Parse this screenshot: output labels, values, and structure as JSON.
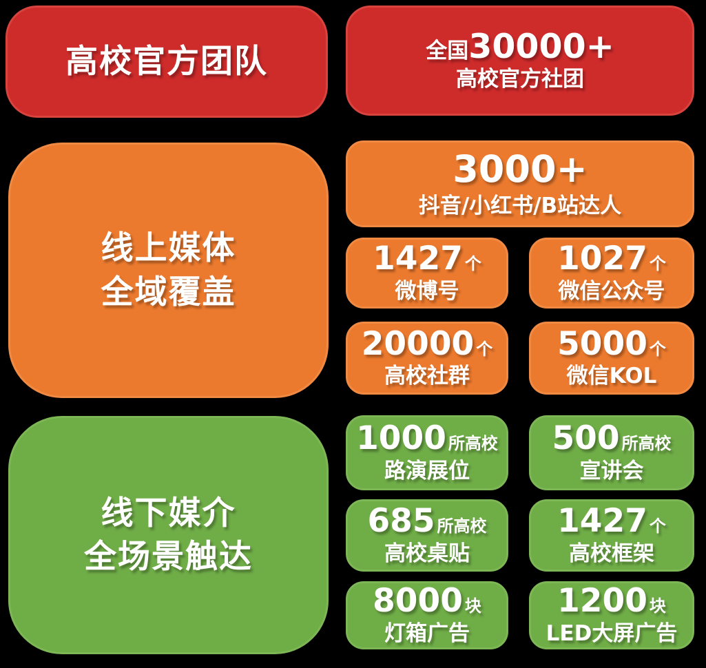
{
  "colors": {
    "background": "#000000",
    "red": "#CE2B2B",
    "red_border": "#D8433E",
    "orange": "#EC7A2E",
    "orange_border": "#F08A43",
    "green": "#6FAD47",
    "green_border": "#7DB755",
    "text": "#FFFFFF"
  },
  "header": {
    "title": "高校官方团队",
    "stat": {
      "prefix": "全国",
      "number": "30000+",
      "label": "高校官方社团"
    }
  },
  "online": {
    "title_line1": "线上媒体",
    "title_line2": "全域覆盖",
    "featured": {
      "number": "3000+",
      "label": "抖音/小红书/B站达人"
    },
    "stats": [
      {
        "number": "1427",
        "unit": "个",
        "label": "微博号"
      },
      {
        "number": "1027",
        "unit": "个",
        "label": "微信公众号"
      },
      {
        "number": "20000",
        "unit": "个",
        "label": "高校社群"
      },
      {
        "number": "5000",
        "unit": "个",
        "label": "微信KOL"
      }
    ]
  },
  "offline": {
    "title_line1": "线下媒介",
    "title_line2": "全场景触达",
    "stats": [
      {
        "number": "1000",
        "unit": "所高校",
        "label": "路演展位"
      },
      {
        "number": "500",
        "unit": "所高校",
        "label": "宣讲会"
      },
      {
        "number": "685",
        "unit": "所高校",
        "label": "高校桌贴"
      },
      {
        "number": "1427",
        "unit": "个",
        "label": "高校框架"
      },
      {
        "number": "8000",
        "unit": "块",
        "label": "灯箱广告"
      },
      {
        "number": "1200",
        "unit": "块",
        "label": "LED大屏广告"
      }
    ]
  }
}
